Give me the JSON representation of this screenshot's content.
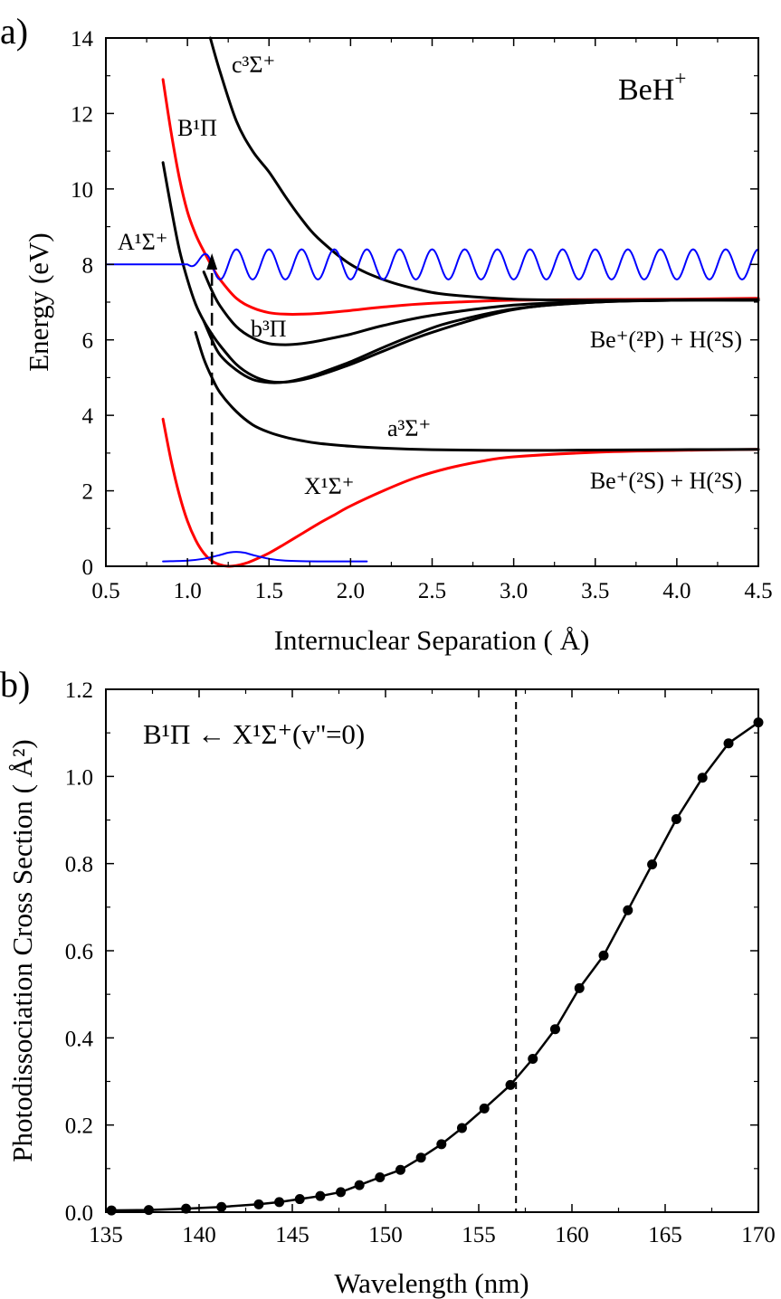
{
  "colors": {
    "black": "#000000",
    "red": "#ff0000",
    "blue": "#0000ff"
  },
  "chart_data": [
    {
      "panel": "a)",
      "type": "line",
      "xlabel": "Internuclear Separation ( Å)",
      "ylabel": "Energy (eV)",
      "xlim": [
        0.5,
        4.5
      ],
      "ylim": [
        0,
        14
      ],
      "xticks": [
        0.5,
        1.0,
        1.5,
        2.0,
        2.5,
        3.0,
        3.5,
        4.0,
        4.5
      ],
      "xtick_labels": [
        "0.5",
        "1.0",
        "1.5",
        "2.0",
        "2.5",
        "3.0",
        "3.5",
        "4.0",
        "4.5"
      ],
      "yticks": [
        0,
        2,
        4,
        6,
        8,
        10,
        12,
        14
      ],
      "ytick_labels": [
        "0",
        "2",
        "4",
        "6",
        "8",
        "10",
        "12",
        "14"
      ],
      "grid": false,
      "annotations": {
        "molecule": {
          "base": "BeH",
          "sup": "+"
        },
        "asym_upper": "Be⁺(²P) + H(²S)",
        "asym_lower": "Be⁺(²S) + H(²S)"
      },
      "series": [
        {
          "name": "X¹Σ⁺",
          "color": "red",
          "x": [
            0.85,
            0.9,
            0.95,
            1.0,
            1.05,
            1.1,
            1.15,
            1.2,
            1.25,
            1.3,
            1.35,
            1.4,
            1.5,
            1.6,
            1.7,
            1.8,
            1.9,
            2.0,
            2.2,
            2.4,
            2.6,
            2.8,
            3.0,
            3.5,
            4.0,
            4.5
          ],
          "y": [
            3.9,
            2.8,
            1.9,
            1.2,
            0.7,
            0.35,
            0.14,
            0.04,
            0.0,
            0.02,
            0.07,
            0.15,
            0.35,
            0.6,
            0.86,
            1.12,
            1.36,
            1.6,
            2.0,
            2.35,
            2.6,
            2.78,
            2.9,
            3.02,
            3.07,
            3.1
          ]
        },
        {
          "name": "a³Σ⁺",
          "color": "black",
          "x": [
            1.05,
            1.1,
            1.15,
            1.2,
            1.3,
            1.4,
            1.5,
            1.6,
            1.7,
            1.8,
            2.0,
            2.2,
            2.5,
            3.0,
            3.5,
            4.0,
            4.5
          ],
          "y": [
            6.2,
            5.5,
            5.0,
            4.6,
            4.1,
            3.75,
            3.55,
            3.42,
            3.33,
            3.26,
            3.18,
            3.13,
            3.09,
            3.07,
            3.08,
            3.09,
            3.1
          ]
        },
        {
          "name": "",
          "color": "black",
          "x": [
            1.1,
            1.15,
            1.2,
            1.3,
            1.4,
            1.5,
            1.6,
            1.7,
            1.8,
            2.0,
            2.2,
            2.4,
            2.6,
            3.0,
            3.5,
            4.0,
            4.5
          ],
          "y": [
            6.5,
            6.0,
            5.6,
            5.2,
            4.95,
            4.87,
            4.88,
            4.97,
            5.1,
            5.42,
            5.8,
            6.15,
            6.45,
            6.82,
            7.0,
            7.05,
            7.05
          ]
        },
        {
          "name": "b³Π",
          "color": "black",
          "x": [
            1.1,
            1.15,
            1.2,
            1.3,
            1.4,
            1.5,
            1.6,
            1.7,
            1.8,
            2.0,
            2.2,
            2.5,
            3.0,
            3.5,
            4.0,
            4.5
          ],
          "y": [
            7.8,
            7.3,
            6.9,
            6.35,
            6.05,
            5.9,
            5.87,
            5.9,
            5.97,
            6.15,
            6.38,
            6.65,
            6.92,
            7.02,
            7.05,
            7.07
          ]
        },
        {
          "name": "A¹Σ⁺",
          "color": "black",
          "x": [
            0.85,
            0.9,
            0.95,
            1.0,
            1.05,
            1.1,
            1.15,
            1.2,
            1.3,
            1.4,
            1.5,
            1.6,
            1.7,
            1.8,
            2.0,
            2.2,
            2.5,
            3.0,
            3.5,
            4.0,
            4.5
          ],
          "y": [
            10.7,
            9.5,
            8.4,
            7.6,
            6.95,
            6.5,
            6.15,
            5.85,
            5.35,
            5.05,
            4.9,
            4.88,
            4.94,
            5.05,
            5.35,
            5.7,
            6.2,
            6.8,
            7.0,
            7.05,
            7.05
          ]
        },
        {
          "name": "B¹Π",
          "color": "red",
          "x": [
            0.85,
            0.9,
            0.95,
            1.0,
            1.05,
            1.1,
            1.15,
            1.2,
            1.3,
            1.4,
            1.5,
            1.6,
            1.7,
            1.8,
            2.0,
            2.2,
            2.5,
            3.0,
            3.5,
            4.0,
            4.5
          ],
          "y": [
            12.9,
            11.5,
            10.3,
            9.4,
            8.8,
            8.35,
            7.95,
            7.6,
            7.1,
            6.85,
            6.72,
            6.68,
            6.68,
            6.7,
            6.78,
            6.87,
            6.97,
            7.05,
            7.07,
            7.08,
            7.1
          ]
        },
        {
          "name": "c³Σ⁺",
          "color": "black",
          "x": [
            1.14,
            1.2,
            1.3,
            1.4,
            1.5,
            1.6,
            1.7,
            1.8,
            2.0,
            2.2,
            2.4,
            2.6,
            3.0,
            3.5,
            4.0,
            4.5
          ],
          "y": [
            14.0,
            13.1,
            11.8,
            11.0,
            10.45,
            9.8,
            9.2,
            8.7,
            8.0,
            7.6,
            7.35,
            7.2,
            7.08,
            7.05,
            7.06,
            7.07
          ]
        },
        {
          "name": "",
          "role": "ground vibrational wavefunction",
          "color": "blue",
          "x": [
            0.85,
            1.0,
            1.1,
            1.2,
            1.25,
            1.3,
            1.35,
            1.4,
            1.5,
            1.6,
            1.8,
            2.1
          ],
          "y": [
            0.13,
            0.15,
            0.2,
            0.3,
            0.36,
            0.38,
            0.36,
            0.3,
            0.2,
            0.15,
            0.13,
            0.13
          ]
        },
        {
          "name": "",
          "role": "continuum wavefunction",
          "color": "blue",
          "x_start": 0.5,
          "x_flat_end": 1.0,
          "x_end": 4.5,
          "baseline": 8.0,
          "amplitude": 0.4,
          "period": 0.2
        }
      ],
      "arrow": {
        "style": "dashed",
        "x": 1.15,
        "y_from": 0.05,
        "y_to": 8.2
      }
    },
    {
      "panel": "b)",
      "type": "line",
      "title": "B¹Π ← X¹Σ⁺(v''=0)",
      "xlabel": "Wavelength (nm)",
      "ylabel": "Photodissociation Cross Section ( Å²)",
      "xlim": [
        135,
        170
      ],
      "ylim": [
        0,
        1.2
      ],
      "xticks": [
        135,
        140,
        145,
        150,
        155,
        160,
        165,
        170
      ],
      "xtick_labels": [
        "135",
        "140",
        "145",
        "150",
        "155",
        "160",
        "165",
        "170"
      ],
      "yticks": [
        0.0,
        0.2,
        0.4,
        0.6,
        0.8,
        1.0,
        1.2
      ],
      "ytick_labels": [
        "0.0",
        "0.2",
        "0.4",
        "0.6",
        "0.8",
        "1.0",
        "1.2"
      ],
      "grid": false,
      "vline": 157.0,
      "series": [
        {
          "name": "",
          "color": "black",
          "markers": true,
          "x": [
            135.3,
            137.3,
            139.3,
            141.2,
            143.2,
            144.3,
            145.4,
            146.5,
            147.6,
            148.6,
            149.7,
            150.8,
            151.9,
            153.0,
            154.1,
            155.3,
            156.7,
            157.9,
            159.1,
            160.4,
            161.7,
            163.0,
            164.3,
            165.6,
            167.0,
            168.4,
            170.0
          ],
          "y": [
            0.004,
            0.005,
            0.008,
            0.012,
            0.018,
            0.023,
            0.03,
            0.037,
            0.046,
            0.062,
            0.08,
            0.097,
            0.125,
            0.156,
            0.193,
            0.238,
            0.292,
            0.352,
            0.42,
            0.514,
            0.589,
            0.693,
            0.798,
            0.902,
            0.997,
            1.076,
            1.124
          ]
        }
      ]
    }
  ]
}
